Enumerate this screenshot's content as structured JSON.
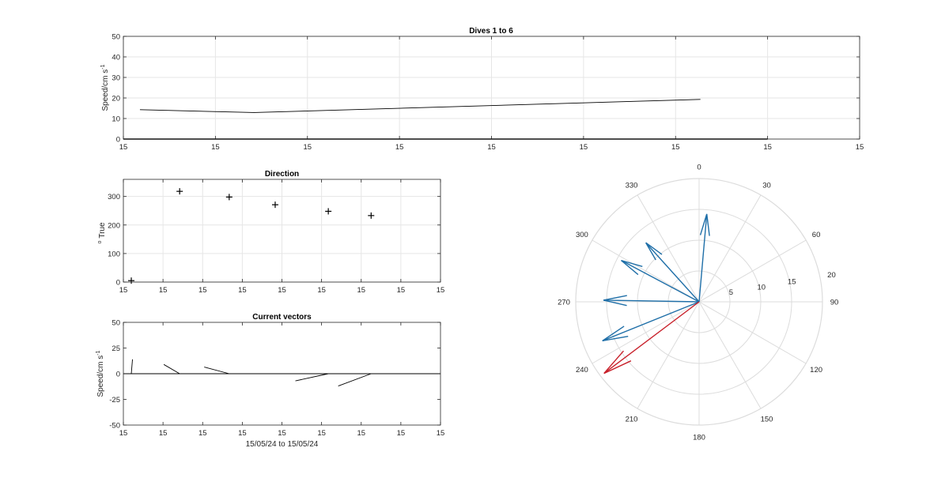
{
  "colors": {
    "vector_blue": "#1f6fa8",
    "vector_red": "#c8202a",
    "line": "#000000",
    "grid": "#e6e6e6",
    "axis": "#262626"
  },
  "chart_data": [
    {
      "id": "speed",
      "type": "line",
      "title": "Dives 1 to 6",
      "xlabel": "",
      "ylabel": "Speed/cm s",
      "ylabel_sup": "-1",
      "ylim": [
        0,
        50
      ],
      "yticks": [
        "0",
        "10",
        "20",
        "30",
        "40",
        "50"
      ],
      "xticks": [
        "15",
        "15",
        "15",
        "15",
        "15",
        "15",
        "15",
        "15",
        "15"
      ],
      "grid": true,
      "series": [
        {
          "x": [
            0.18,
            1.42,
            6.27
          ],
          "y": [
            14.3,
            12.9,
            19.3
          ]
        },
        {
          "x": [
            0,
            7
          ],
          "y": [
            0,
            0
          ]
        }
      ]
    },
    {
      "id": "direction",
      "type": "scatter",
      "title": "Direction",
      "xlabel": "",
      "ylabel": "True",
      "ylabel_sup": "o",
      "ylim": [
        0,
        360
      ],
      "yticks": [
        "0",
        "100",
        "200",
        "300"
      ],
      "xticks": [
        "15",
        "15",
        "15",
        "15",
        "15",
        "15",
        "15",
        "15",
        "15"
      ],
      "grid": true,
      "marker": "+",
      "points": [
        {
          "x": 0.2,
          "y": 5
        },
        {
          "x": 1.42,
          "y": 318
        },
        {
          "x": 2.67,
          "y": 298
        },
        {
          "x": 3.83,
          "y": 271
        },
        {
          "x": 5.17,
          "y": 248
        },
        {
          "x": 6.25,
          "y": 233
        }
      ]
    },
    {
      "id": "vectors",
      "type": "line",
      "title": "Current vectors",
      "xlabel": "15/05/24 to 15/05/24",
      "ylabel": "Speed/cm s",
      "ylabel_sup": "-1",
      "ylim": [
        -50,
        50
      ],
      "yticks": [
        "-50",
        "-25",
        "0",
        "25",
        "50"
      ],
      "xticks": [
        "15",
        "15",
        "15",
        "15",
        "15",
        "15",
        "15",
        "15",
        "15"
      ],
      "grid": false,
      "vectors": [
        {
          "x0": 0.2,
          "dx": 0.03,
          "dy": 14
        },
        {
          "x0": 1.42,
          "dx": -0.4,
          "dy": 9
        },
        {
          "x0": 2.67,
          "dx": -0.63,
          "dy": 6.5
        },
        {
          "x0": 3.0,
          "dx": 0.3,
          "dy": 0
        },
        {
          "x0": 5.17,
          "dx": -0.83,
          "dy": -7
        },
        {
          "x0": 6.25,
          "dx": -0.83,
          "dy": -12
        }
      ]
    },
    {
      "id": "compass",
      "type": "polar",
      "rlim": [
        0,
        20
      ],
      "rticks": [
        "5",
        "10",
        "15",
        "20"
      ],
      "theta_labels": [
        "0",
        "30",
        "60",
        "90",
        "120",
        "150",
        "180",
        "210",
        "240",
        "270",
        "300",
        "330"
      ],
      "grid": true,
      "arrows": [
        {
          "dir": 5,
          "speed": 14.3,
          "color": "blue"
        },
        {
          "dir": 318,
          "speed": 12.9,
          "color": "blue"
        },
        {
          "dir": 298,
          "speed": 14.3,
          "color": "blue"
        },
        {
          "dir": 271,
          "speed": 15.5,
          "color": "blue"
        },
        {
          "dir": 248,
          "speed": 16.9,
          "color": "blue"
        },
        {
          "dir": 233,
          "speed": 19.3,
          "color": "red"
        }
      ]
    }
  ]
}
